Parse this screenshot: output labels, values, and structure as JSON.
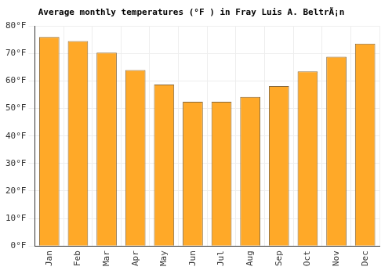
{
  "chart_data": {
    "type": "bar",
    "title": "Average monthly temperatures (°F ) in Fray Luis A. BeltrÃ¡n",
    "categories": [
      "Jan",
      "Feb",
      "Mar",
      "Apr",
      "May",
      "Jun",
      "Jul",
      "Aug",
      "Sep",
      "Oct",
      "Nov",
      "Dec"
    ],
    "values": [
      76,
      74.5,
      70.3,
      64,
      58.7,
      52.4,
      52.4,
      54.2,
      58.1,
      63.5,
      68.8,
      73.6
    ],
    "color": "#ffa928",
    "ylim": [
      0,
      80
    ],
    "yticks": [
      {
        "value": 0,
        "label": "0°F"
      },
      {
        "value": 10,
        "label": "10°F"
      },
      {
        "value": 20,
        "label": "20°F"
      },
      {
        "value": 30,
        "label": "30°F"
      },
      {
        "value": 40,
        "label": "40°F"
      },
      {
        "value": 50,
        "label": "50°F"
      },
      {
        "value": 60,
        "label": "60°F"
      },
      {
        "value": 70,
        "label": "70°F"
      },
      {
        "value": 80,
        "label": "80°F"
      }
    ],
    "grid": true
  }
}
